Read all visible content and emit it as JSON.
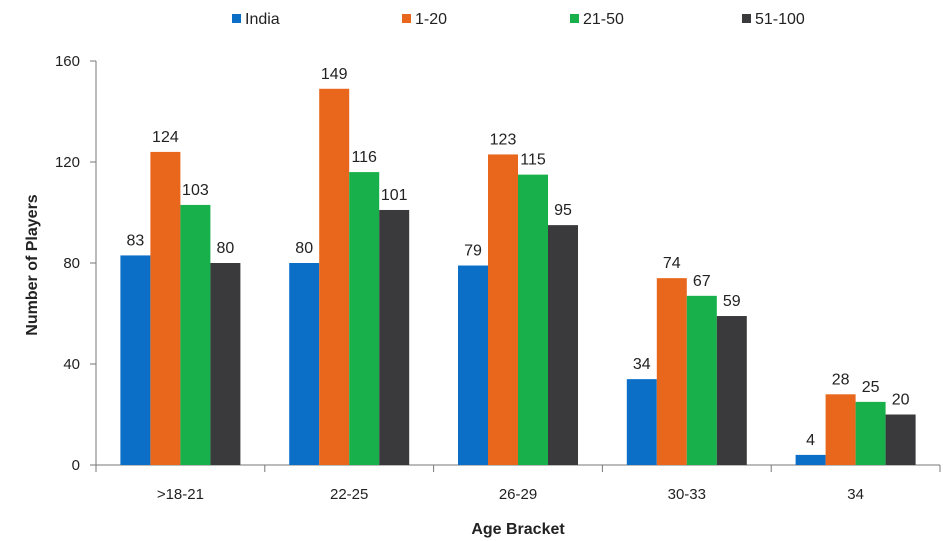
{
  "chart_data": {
    "type": "bar",
    "title": "",
    "xlabel": "Age Bracket",
    "ylabel": "Number of Players",
    "ylim": [
      0,
      160
    ],
    "yticks": [
      0,
      40,
      80,
      120,
      160
    ],
    "legend_position": "top",
    "grid": false,
    "categories": [
      ">18-21",
      "22-25",
      "26-29",
      "30-33",
      "34"
    ],
    "series": [
      {
        "name": "India",
        "color": "#0b6fc7",
        "values": [
          83,
          80,
          79,
          34,
          4
        ]
      },
      {
        "name": "1-20",
        "color": "#e8671c",
        "values": [
          124,
          149,
          123,
          74,
          28
        ]
      },
      {
        "name": "21-50",
        "color": "#17b04a",
        "values": [
          103,
          116,
          115,
          67,
          25
        ]
      },
      {
        "name": "51-100",
        "color": "#3a3a3c",
        "values": [
          80,
          101,
          95,
          59,
          20
        ]
      }
    ]
  }
}
